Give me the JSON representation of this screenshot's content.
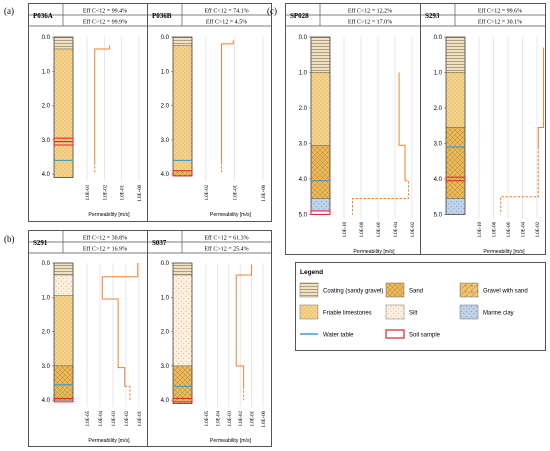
{
  "figure_labels": {
    "a": "(a)",
    "b": "(b)",
    "c": "(c)"
  },
  "xlabel": "Permeability [m/s]",
  "panels": [
    {
      "id": "P036A",
      "eff_lt": "Eff C<12 = 99.4%",
      "eff_gt": "Eff C>12 = 99.9%",
      "y_ticks": [
        "0.0",
        "1.0",
        "2.0",
        "3.0",
        "4.0"
      ],
      "y_max": 4.2,
      "x_ticks": [
        "1.0E-03",
        "1.0E-02",
        "1.0E-01",
        "1.0E+00"
      ],
      "x_log_min": -3,
      "layers": [
        {
          "from": 0,
          "to": 0.35,
          "type": "coating"
        },
        {
          "from": 0.35,
          "to": 4.1,
          "type": "friable_limestones"
        }
      ],
      "water_table": 3.6,
      "samples": [
        {
          "from": 2.95,
          "to": 3.05
        },
        {
          "from": 3.05,
          "to": 3.15
        }
      ],
      "permeability": [
        {
          "k": 0.02,
          "from": 0.25,
          "to": 0.35
        },
        {
          "k": 0.0028,
          "from": 0.35,
          "to": 3.65
        }
      ],
      "dashed": [
        {
          "k": 0.0028,
          "from": 3.65,
          "to": 4.0
        }
      ]
    },
    {
      "id": "P036B",
      "eff_lt": "Eff C<12 = 74.1%",
      "eff_gt": "Eff C>12 = 4.5%",
      "y_ticks": [
        "0.0",
        "1.0",
        "2.0",
        "3.0",
        "4.0"
      ],
      "y_max": 4.2,
      "x_ticks": [
        "1.0E-02",
        "1.0E-01",
        "1.0E+00"
      ],
      "x_log_min": -2,
      "layers": [
        {
          "from": 0,
          "to": 0.25,
          "type": "coating"
        },
        {
          "from": 0.25,
          "to": 3.9,
          "type": "friable_limestones"
        },
        {
          "from": 3.9,
          "to": 4.05,
          "type": "sand"
        }
      ],
      "water_table": 3.6,
      "samples": [
        {
          "from": 3.9,
          "to": 4.05
        }
      ],
      "permeability": [
        {
          "k": 0.09,
          "from": 0.1,
          "to": 0.2
        },
        {
          "k": 0.035,
          "from": 0.2,
          "to": 3.65
        }
      ],
      "dashed": [
        {
          "k": 0.035,
          "from": 3.65,
          "to": 3.95
        }
      ]
    },
    {
      "id": "S291",
      "eff_lt": "Eff C<12 = 30.8%",
      "eff_gt": "Eff C>12 = 16.9%",
      "y_ticks": [
        "0.0",
        "1.0",
        "2.0",
        "3.0",
        "4.0"
      ],
      "y_max": 4.2,
      "x_ticks": [
        "1.0E-05",
        "1.0E-04",
        "1.0E-03",
        "1.0E-02",
        "1.0E-01"
      ],
      "x_log_min": -5,
      "layers": [
        {
          "from": 0,
          "to": 0.35,
          "type": "coating"
        },
        {
          "from": 0.35,
          "to": 0.95,
          "type": "silt"
        },
        {
          "from": 0.95,
          "to": 3.0,
          "type": "friable_limestones"
        },
        {
          "from": 3.0,
          "to": 4.0,
          "type": "sand"
        }
      ],
      "water_table": 3.55,
      "samples": [
        {
          "from": 3.95,
          "to": 4.05
        }
      ],
      "permeability": [
        {
          "k": 0.08,
          "from": 0,
          "to": 0.4
        },
        {
          "k": 0.00015,
          "from": 0.4,
          "to": 1.05
        },
        {
          "k": 0.0025,
          "from": 1.05,
          "to": 3.05
        },
        {
          "k": 0.008,
          "from": 3.05,
          "to": 3.6
        }
      ],
      "dashed": [
        {
          "k": 0.02,
          "from": 3.6,
          "to": 4.0
        }
      ]
    },
    {
      "id": "S037",
      "eff_lt": "Eff C<12 = 61.3%",
      "eff_gt": "Eff C>12 = 25.4%",
      "y_ticks": [
        "0.0",
        "1.0",
        "2.0",
        "3.0",
        "4.0"
      ],
      "y_max": 4.2,
      "x_ticks": [
        "1.0E-05",
        "1.0E-04",
        "1.0E-03",
        "1.0E-02",
        "1.0E-01",
        "1.0E+00"
      ],
      "x_log_min": -5,
      "layers": [
        {
          "from": 0,
          "to": 0.35,
          "type": "coating"
        },
        {
          "from": 0.35,
          "to": 3.0,
          "type": "silt"
        },
        {
          "from": 3.0,
          "to": 3.95,
          "type": "sand"
        },
        {
          "from": 3.95,
          "to": 4.1,
          "type": "gravel_sand"
        }
      ],
      "water_table": 3.6,
      "samples": [
        {
          "from": 3.95,
          "to": 4.05
        }
      ],
      "permeability": [
        {
          "k": 0.1,
          "from": 0.05,
          "to": 0.35
        },
        {
          "k": 0.0045,
          "from": 0.35,
          "to": 3.0
        },
        {
          "k": 0.02,
          "from": 3.0,
          "to": 3.6
        }
      ],
      "dashed": [
        {
          "k": 0.02,
          "from": 3.6,
          "to": 4.0
        }
      ]
    },
    {
      "id": "SP028",
      "eff_lt": "Eff C<12 = 12.2%",
      "eff_gt": "Eff C>12 = 17.0%",
      "y_ticks": [
        "0.0",
        "1.0",
        "2.0",
        "3.0",
        "4.0",
        "5.0"
      ],
      "y_max": 5.1,
      "x_ticks": [
        "1.0E-10",
        "1.0E-08",
        "1.0E-06",
        "1.0E-04",
        "1.0E-02"
      ],
      "x_log_min": -10,
      "layers": [
        {
          "from": 0,
          "to": 1.0,
          "type": "coating"
        },
        {
          "from": 1.0,
          "to": 3.05,
          "type": "friable_limestones"
        },
        {
          "from": 3.05,
          "to": 4.05,
          "type": "sand"
        },
        {
          "from": 4.05,
          "to": 4.55,
          "type": "sand"
        },
        {
          "from": 4.55,
          "to": 4.9,
          "type": "marine_clay"
        }
      ],
      "water_table": 4.05,
      "samples": [
        {
          "from": 4.9,
          "to": 5.0
        }
      ],
      "permeability": [
        {
          "k": 0.0003,
          "from": 1.0,
          "to": 3.05
        },
        {
          "k": 0.0015,
          "from": 3.05,
          "to": 4.05
        }
      ],
      "dashed": [
        {
          "k": 0.004,
          "from": 4.05,
          "to": 4.55
        },
        {
          "k": 1e-09,
          "from": 4.55,
          "to": 5.0
        }
      ]
    },
    {
      "id": "S293",
      "eff_lt": "Eff C<12 = 99.6%",
      "eff_gt": "Eff C>12 = 30.1%",
      "y_ticks": [
        "0.0",
        "1.0",
        "2.0",
        "3.0",
        "4.0",
        "5.0"
      ],
      "y_max": 5.1,
      "x_ticks": [
        "1.0E-10",
        "1.0E-08",
        "1.0E-06",
        "1.0E-04",
        "1.0E-02"
      ],
      "x_log_min": -10,
      "layers": [
        {
          "from": 0,
          "to": 1.0,
          "type": "coating"
        },
        {
          "from": 1.0,
          "to": 2.55,
          "type": "friable_limestones"
        },
        {
          "from": 2.55,
          "to": 4.05,
          "type": "sand"
        },
        {
          "from": 4.05,
          "to": 4.55,
          "type": "sand"
        },
        {
          "from": 4.55,
          "to": 5.0,
          "type": "marine_clay"
        }
      ],
      "water_table": 3.1,
      "samples": [
        {
          "from": 3.95,
          "to": 4.05
        }
      ],
      "permeability": [
        {
          "k": 0.08,
          "from": 0.3,
          "to": 2.55
        },
        {
          "k": 0.015,
          "from": 2.55,
          "to": 3.1
        }
      ],
      "dashed": [
        {
          "k": 0.015,
          "from": 3.1,
          "to": 4.5
        },
        {
          "k": 1e-07,
          "from": 4.5,
          "to": 5.0
        }
      ]
    }
  ],
  "legend": {
    "title": "Legend",
    "items": [
      {
        "type": "coating",
        "label": "Coating (sandy gravel)"
      },
      {
        "type": "sand",
        "label": "Sand"
      },
      {
        "type": "gravel_sand",
        "label": "Gravel with sand"
      },
      {
        "type": "friable_limestones",
        "label": "Friable limestones"
      },
      {
        "type": "silt",
        "label": "Silt"
      },
      {
        "type": "marine_clay",
        "label": "Marine clay"
      },
      {
        "type": "water_table",
        "label": "Water table"
      },
      {
        "type": "soil_sample",
        "label": "Soil sample"
      }
    ]
  },
  "colors": {
    "permeability": "#f08030",
    "water_table": "#3aa0c8",
    "sample": "#e0202a",
    "border": "#444444"
  }
}
